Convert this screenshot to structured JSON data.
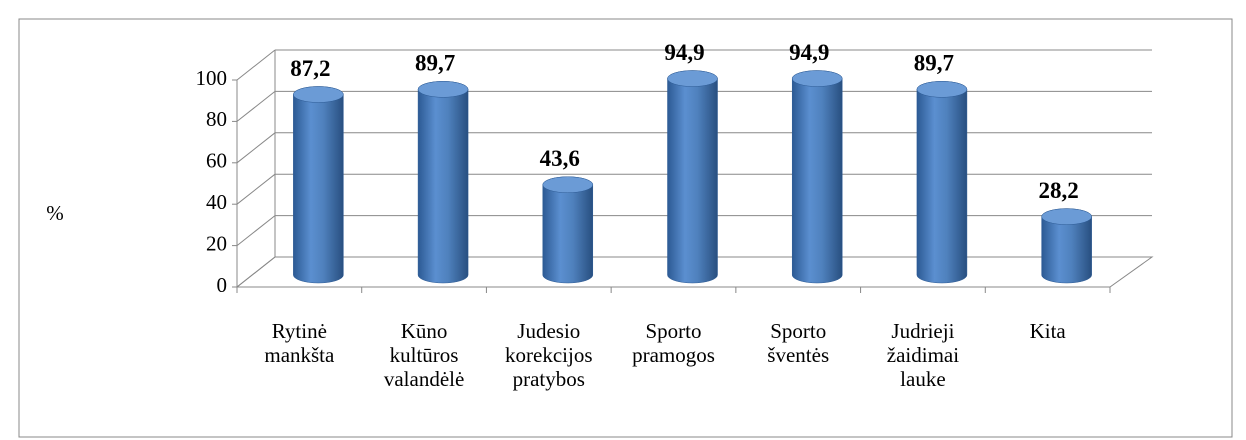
{
  "chart_data": {
    "type": "bar3d",
    "categories": [
      "Rytinė mankšta",
      "Kūno kultūros valandėlė",
      "Judesio korekcijos pratybos",
      "Sporto pramogos",
      "Sporto šventės",
      "Judrieji žaidimai lauke",
      "Kita"
    ],
    "values": [
      87.2,
      89.7,
      43.6,
      94.9,
      94.9,
      89.7,
      28.2
    ],
    "value_labels": [
      "87,2",
      "89,7",
      "43,6",
      "94,9",
      "94,9",
      "89,7",
      "28,2"
    ],
    "color": "#4f81bd",
    "ylabel": "%",
    "ylim": [
      0,
      100
    ],
    "yticks": [
      0,
      20,
      40,
      60,
      80,
      100
    ],
    "grid": true
  }
}
